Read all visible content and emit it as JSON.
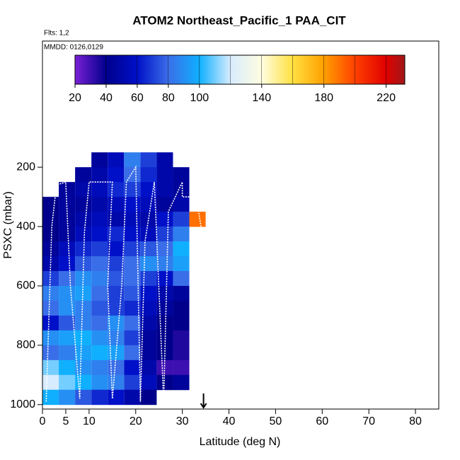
{
  "chart_data": {
    "type": "heatmap",
    "title": "ATOM2 Northeast_Pacific_1 PAA_CIT",
    "flights": "Flts: 1,2",
    "dates": "MMDD: 0126,0129",
    "x_label": "Latitude (deg N)",
    "y_label": "PSXC (mbar)",
    "xlim": [
      0,
      85
    ],
    "xticks": [
      0,
      5,
      10,
      20,
      30,
      40,
      50,
      60,
      70,
      80
    ],
    "ylim": [
      1015,
      -225
    ],
    "yticks": [
      200,
      400,
      600,
      800,
      1000
    ],
    "x_edges": [
      0,
      3.5,
      7,
      10.5,
      14,
      17.5,
      21,
      24.5,
      28,
      31.5,
      35
    ],
    "y_edges": [
      150,
      200,
      250,
      300,
      350,
      400,
      450,
      500,
      550,
      600,
      650,
      700,
      750,
      800,
      850,
      900,
      950,
      1000
    ],
    "values": [
      [
        null,
        null,
        null,
        45,
        55,
        85,
        70,
        50,
        null,
        null
      ],
      [
        null,
        null,
        45,
        50,
        60,
        80,
        65,
        50,
        45,
        null
      ],
      [
        null,
        45,
        50,
        55,
        65,
        70,
        60,
        50,
        45,
        null
      ],
      [
        40,
        45,
        45,
        50,
        55,
        60,
        55,
        45,
        50,
        null
      ],
      [
        40,
        45,
        50,
        55,
        50,
        55,
        50,
        60,
        70,
        190
      ],
      [
        40,
        45,
        55,
        60,
        65,
        60,
        55,
        70,
        85,
        null
      ],
      [
        45,
        55,
        65,
        70,
        60,
        70,
        75,
        80,
        100,
        null
      ],
      [
        50,
        60,
        75,
        80,
        70,
        80,
        90,
        85,
        95,
        null
      ],
      [
        70,
        80,
        90,
        85,
        75,
        80,
        70,
        60,
        80,
        null
      ],
      [
        85,
        90,
        95,
        80,
        70,
        75,
        60,
        50,
        45,
        null
      ],
      [
        80,
        90,
        85,
        75,
        70,
        65,
        55,
        45,
        40,
        null
      ],
      [
        60,
        75,
        85,
        80,
        90,
        80,
        50,
        40,
        40,
        null
      ],
      [
        90,
        95,
        100,
        90,
        85,
        70,
        45,
        40,
        35,
        null
      ],
      [
        80,
        85,
        95,
        100,
        95,
        80,
        45,
        40,
        35,
        null
      ],
      [
        110,
        100,
        90,
        85,
        80,
        60,
        50,
        30,
        30,
        null
      ],
      [
        120,
        110,
        100,
        90,
        85,
        70,
        55,
        40,
        45,
        null
      ],
      [
        100,
        90,
        75,
        65,
        60,
        50,
        40,
        null,
        null,
        null
      ]
    ],
    "track": {
      "color": "#ffffff",
      "x": [
        0.8,
        2,
        3,
        5,
        6,
        8,
        9,
        10,
        15,
        14,
        15,
        17,
        18,
        20,
        21,
        22,
        24,
        26,
        27,
        30,
        30,
        33,
        34,
        34.5
      ],
      "y": [
        990,
        400,
        260,
        250,
        600,
        980,
        420,
        250,
        250,
        600,
        980,
        600,
        250,
        200,
        990,
        450,
        250,
        990,
        350,
        250,
        300,
        300,
        400,
        990
      ]
    },
    "colorbar_lim": [
      20,
      232
    ],
    "colorbar_ticks": [
      20,
      40,
      60,
      80,
      100,
      140,
      180,
      220
    ],
    "colorscale": [
      {
        "value": 20,
        "color": "#7a1fd6"
      },
      {
        "value": 40,
        "color": "#00008b"
      },
      {
        "value": 60,
        "color": "#0010c8"
      },
      {
        "value": 80,
        "color": "#3a6ee8"
      },
      {
        "value": 100,
        "color": "#10b0ff"
      },
      {
        "value": 120,
        "color": "#d8ecff"
      },
      {
        "value": 140,
        "color": "#fffde0"
      },
      {
        "value": 160,
        "color": "#ffe040"
      },
      {
        "value": 180,
        "color": "#ffa000"
      },
      {
        "value": 200,
        "color": "#ff4000"
      },
      {
        "value": 220,
        "color": "#e00000"
      },
      {
        "value": 232,
        "color": "#a01818"
      }
    ]
  }
}
